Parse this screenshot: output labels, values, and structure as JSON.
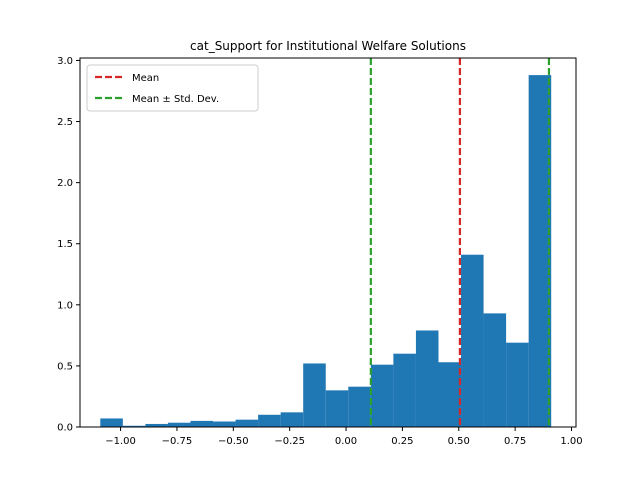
{
  "chart_data": {
    "type": "bar",
    "title": "cat_Support for Institutional Welfare Solutions",
    "xlabel": "",
    "ylabel": "",
    "xlim": [
      -1.18,
      1.02
    ],
    "ylim": [
      0,
      3.02
    ],
    "xticks": [
      -1.0,
      -0.75,
      -0.5,
      -0.25,
      0.0,
      0.25,
      0.5,
      0.75,
      1.0
    ],
    "xtick_labels": [
      "−1.00",
      "−0.75",
      "−0.50",
      "−0.25",
      "0.00",
      "0.25",
      "0.50",
      "0.75",
      "1.00"
    ],
    "yticks": [
      0.0,
      0.5,
      1.0,
      1.5,
      2.0,
      2.5,
      3.0
    ],
    "ytick_labels": [
      "0.0",
      "0.5",
      "1.0",
      "1.5",
      "2.0",
      "2.5",
      "3.0"
    ],
    "bar_color": "#1f77b4",
    "bins": [
      {
        "x0": -1.09,
        "x1": -0.99,
        "value": 0.07
      },
      {
        "x0": -0.99,
        "x1": -0.89,
        "value": 0.01
      },
      {
        "x0": -0.89,
        "x1": -0.79,
        "value": 0.025
      },
      {
        "x0": -0.79,
        "x1": -0.69,
        "value": 0.035
      },
      {
        "x0": -0.69,
        "x1": -0.59,
        "value": 0.05
      },
      {
        "x0": -0.59,
        "x1": -0.49,
        "value": 0.045
      },
      {
        "x0": -0.49,
        "x1": -0.39,
        "value": 0.06
      },
      {
        "x0": -0.39,
        "x1": -0.29,
        "value": 0.1
      },
      {
        "x0": -0.29,
        "x1": -0.19,
        "value": 0.12
      },
      {
        "x0": -0.19,
        "x1": -0.09,
        "value": 0.52
      },
      {
        "x0": -0.09,
        "x1": 0.01,
        "value": 0.3
      },
      {
        "x0": 0.01,
        "x1": 0.11,
        "value": 0.33
      },
      {
        "x0": 0.11,
        "x1": 0.21,
        "value": 0.51
      },
      {
        "x0": 0.21,
        "x1": 0.31,
        "value": 0.6
      },
      {
        "x0": 0.31,
        "x1": 0.41,
        "value": 0.79
      },
      {
        "x0": 0.41,
        "x1": 0.51,
        "value": 0.53
      },
      {
        "x0": 0.51,
        "x1": 0.61,
        "value": 1.41
      },
      {
        "x0": 0.61,
        "x1": 0.71,
        "value": 0.93
      },
      {
        "x0": 0.71,
        "x1": 0.81,
        "value": 0.69
      },
      {
        "x0": 0.81,
        "x1": 0.91,
        "value": 2.88
      }
    ],
    "vlines": [
      {
        "name": "Mean",
        "x": 0.505,
        "color": "#d62728",
        "style": "dashed"
      },
      {
        "name": "Mean ± Std. Dev.",
        "x": 0.11,
        "color": "#2ca02c",
        "style": "dashed"
      },
      {
        "name": "Mean ± Std. Dev.",
        "x": 0.9,
        "color": "#2ca02c",
        "style": "dashed"
      }
    ],
    "legend": {
      "position": "top-left",
      "entries": [
        {
          "label": "Mean",
          "color": "#d62728"
        },
        {
          "label": "Mean ± Std. Dev.",
          "color": "#2ca02c"
        }
      ]
    },
    "grid": false
  }
}
